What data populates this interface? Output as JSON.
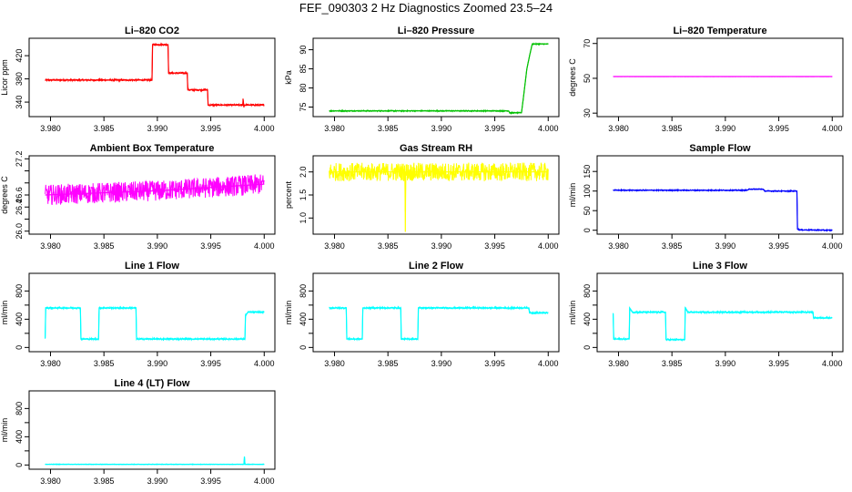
{
  "page": {
    "title": "FEF_090303  2 Hz Diagnostics Zoomed 23.5–24"
  },
  "chart_data": [
    {
      "type": "line",
      "title": "Li–820 CO2",
      "ylabel": "Licor ppm",
      "xlim": [
        3.978,
        4.001
      ],
      "ylim": [
        315,
        450
      ],
      "color": "#ff0000",
      "noise": 1.5,
      "xticks": [
        3.98,
        3.985,
        3.99,
        3.995,
        4.0
      ],
      "xticklabels": [
        "3.980",
        "3.985",
        "3.990",
        "3.995",
        "4.000"
      ],
      "yticks": [
        340,
        380,
        420
      ],
      "yticklabels": [
        "340",
        "380",
        "420"
      ],
      "series": [
        {
          "x": [
            3.9795,
            3.9895,
            3.98955,
            3.991,
            3.99105,
            3.9928,
            3.99285,
            3.9947,
            3.99475,
            3.998,
            3.99802,
            3.9981,
            3.99812,
            4.0
          ],
          "y": [
            378,
            378,
            439,
            439,
            390,
            390,
            361,
            361,
            335,
            335,
            346,
            331,
            335,
            335
          ]
        }
      ]
    },
    {
      "type": "line",
      "title": "Li–820 Pressure",
      "ylabel": "kPa",
      "xlim": [
        3.978,
        4.001
      ],
      "ylim": [
        72.5,
        93
      ],
      "color": "#00c000",
      "noise": 0.15,
      "xticks": [
        3.98,
        3.985,
        3.99,
        3.995,
        4.0
      ],
      "xticklabels": [
        "3.980",
        "3.985",
        "3.990",
        "3.995",
        "4.000"
      ],
      "yticks": [
        75,
        80,
        85,
        90
      ],
      "yticklabels": [
        "75",
        "80",
        "85",
        "90"
      ],
      "series": [
        {
          "x": [
            3.9795,
            3.9963,
            3.9964,
            3.9975,
            3.9977,
            3.998,
            3.9983,
            3.9985,
            4.0
          ],
          "y": [
            74.0,
            74.0,
            73.5,
            73.5,
            78,
            85,
            89,
            91.5,
            91.5
          ]
        }
      ]
    },
    {
      "type": "line",
      "title": "Li–820 Temperature",
      "ylabel": "degrees C",
      "xlim": [
        3.978,
        4.001
      ],
      "ylim": [
        28,
        73
      ],
      "color": "#ff00ff",
      "noise": 0.05,
      "xticks": [
        3.98,
        3.985,
        3.99,
        3.995,
        4.0
      ],
      "xticklabels": [
        "3.980",
        "3.985",
        "3.990",
        "3.995",
        "4.000"
      ],
      "yticks": [
        30,
        50,
        70
      ],
      "yticklabels": [
        "30",
        "50",
        "70"
      ],
      "series": [
        {
          "x": [
            3.9795,
            4.0
          ],
          "y": [
            51,
            51
          ]
        }
      ]
    },
    {
      "type": "line",
      "title": "Ambient Box Temperature",
      "ylabel": "degrees C",
      "xlim": [
        3.978,
        4.001
      ],
      "ylim": [
        25.95,
        27.25
      ],
      "color": "#ff00ff",
      "noise": 0.17,
      "xticks": [
        3.98,
        3.985,
        3.99,
        3.995,
        4.0
      ],
      "xticklabels": [
        "3.980",
        "3.985",
        "3.990",
        "3.995",
        "4.000"
      ],
      "yticks": [
        26.0,
        26.2,
        26.4,
        26.6,
        26.8,
        27.0,
        27.2
      ],
      "yticklabels": [
        "26.0",
        "",
        "26.4",
        "26.6",
        "",
        "",
        "27.2"
      ],
      "series": [
        {
          "x": [
            3.9795,
            3.99,
            4.0
          ],
          "y": [
            26.6,
            26.67,
            26.78
          ]
        }
      ]
    },
    {
      "type": "line",
      "title": "Gas Stream RH",
      "ylabel": "percent",
      "xlim": [
        3.978,
        4.001
      ],
      "ylim": [
        0.65,
        2.35
      ],
      "color": "#ffff00",
      "noise": 0.2,
      "xticks": [
        3.98,
        3.985,
        3.99,
        3.995,
        4.0
      ],
      "xticklabels": [
        "3.980",
        "3.985",
        "3.990",
        "3.995",
        "4.000"
      ],
      "yticks": [
        1.0,
        1.5,
        2.0
      ],
      "yticklabels": [
        "1.0",
        "1.5",
        "2.0"
      ],
      "series": [
        {
          "x": [
            3.9795,
            3.9866,
            3.98663,
            3.98666,
            4.0
          ],
          "y": [
            2.0,
            2.0,
            0.7,
            2.0,
            2.0
          ]
        }
      ]
    },
    {
      "type": "line",
      "title": "Sample Flow",
      "ylabel": "ml/min",
      "xlim": [
        3.978,
        4.001
      ],
      "ylim": [
        -10,
        190
      ],
      "color": "#0000ff",
      "noise": 1.5,
      "xticks": [
        3.98,
        3.985,
        3.99,
        3.995,
        4.0
      ],
      "xticklabels": [
        "3.980",
        "3.985",
        "3.990",
        "3.995",
        "4.000"
      ],
      "yticks": [
        0,
        50,
        100,
        150
      ],
      "yticklabels": [
        "0",
        "50",
        "100",
        "150"
      ],
      "series": [
        {
          "x": [
            3.9795,
            3.992,
            3.9923,
            3.9935,
            3.9937,
            3.9967,
            3.99675,
            3.997,
            4.0
          ],
          "y": [
            102,
            102,
            105,
            105,
            100,
            100,
            3,
            1,
            0
          ]
        }
      ]
    },
    {
      "type": "line",
      "title": "Line 1 Flow",
      "ylabel": "ml/min",
      "xlim": [
        3.978,
        4.001
      ],
      "ylim": [
        -60,
        1050
      ],
      "color": "#00ffff",
      "noise": 12,
      "xticks": [
        3.98,
        3.985,
        3.99,
        3.995,
        4.0
      ],
      "xticklabels": [
        "3.980",
        "3.985",
        "3.990",
        "3.995",
        "4.000"
      ],
      "yticks": [
        0,
        200,
        400,
        600,
        800
      ],
      "yticklabels": [
        "0",
        "",
        "400",
        "",
        "800"
      ],
      "series": [
        {
          "x": [
            3.9795,
            3.97955,
            3.9828,
            3.98285,
            3.9845,
            3.98455,
            3.988,
            3.98805,
            3.9982,
            3.99825,
            3.9985,
            4.0
          ],
          "y": [
            130,
            560,
            560,
            120,
            120,
            560,
            560,
            120,
            120,
            460,
            500,
            500
          ]
        }
      ]
    },
    {
      "type": "line",
      "title": "Line 2 Flow",
      "ylabel": "ml/min",
      "xlim": [
        3.978,
        4.001
      ],
      "ylim": [
        -60,
        1050
      ],
      "color": "#00ffff",
      "noise": 12,
      "xticks": [
        3.98,
        3.985,
        3.99,
        3.995,
        4.0
      ],
      "xticklabels": [
        "3.980",
        "3.985",
        "3.990",
        "3.995",
        "4.000"
      ],
      "yticks": [
        0,
        200,
        400,
        600,
        800
      ],
      "yticklabels": [
        "0",
        "",
        "400",
        "",
        "800"
      ],
      "series": [
        {
          "x": [
            3.9795,
            3.9811,
            3.98115,
            3.9826,
            3.98265,
            3.9862,
            3.98625,
            3.9878,
            3.98785,
            3.9982,
            3.99825,
            4.0
          ],
          "y": [
            560,
            560,
            120,
            120,
            560,
            560,
            120,
            120,
            560,
            560,
            490,
            490
          ]
        }
      ]
    },
    {
      "type": "line",
      "title": "Line 3 Flow",
      "ylabel": "ml/min",
      "xlim": [
        3.978,
        4.001
      ],
      "ylim": [
        -60,
        1050
      ],
      "color": "#00ffff",
      "noise": 12,
      "xticks": [
        3.98,
        3.985,
        3.99,
        3.995,
        4.0
      ],
      "xticklabels": [
        "3.980",
        "3.985",
        "3.990",
        "3.995",
        "4.000"
      ],
      "yticks": [
        0,
        200,
        400,
        600,
        800
      ],
      "yticklabels": [
        "0",
        "",
        "400",
        "",
        "800"
      ],
      "series": [
        {
          "x": [
            3.9795,
            3.97955,
            3.9797,
            3.981,
            3.98105,
            3.9813,
            3.9844,
            3.98445,
            3.9862,
            3.98625,
            3.9865,
            3.9982,
            3.99825,
            4.0
          ],
          "y": [
            480,
            120,
            120,
            120,
            560,
            500,
            500,
            110,
            110,
            560,
            500,
            500,
            420,
            420
          ]
        }
      ]
    },
    {
      "type": "line",
      "title": "Line 4 (LT) Flow",
      "ylabel": "ml/min",
      "xlim": [
        3.978,
        4.001
      ],
      "ylim": [
        -60,
        1050
      ],
      "color": "#00ffff",
      "noise": 4,
      "xticks": [
        3.98,
        3.985,
        3.99,
        3.995,
        4.0
      ],
      "xticklabels": [
        "3.980",
        "3.985",
        "3.990",
        "3.995",
        "4.000"
      ],
      "yticks": [
        0,
        200,
        400,
        600,
        800
      ],
      "yticklabels": [
        "0",
        "",
        "400",
        "",
        "800"
      ],
      "series": [
        {
          "x": [
            3.9795,
            3.9981,
            3.99815,
            3.9982,
            3.99825,
            4.0
          ],
          "y": [
            10,
            10,
            120,
            10,
            10,
            10
          ]
        }
      ]
    }
  ]
}
